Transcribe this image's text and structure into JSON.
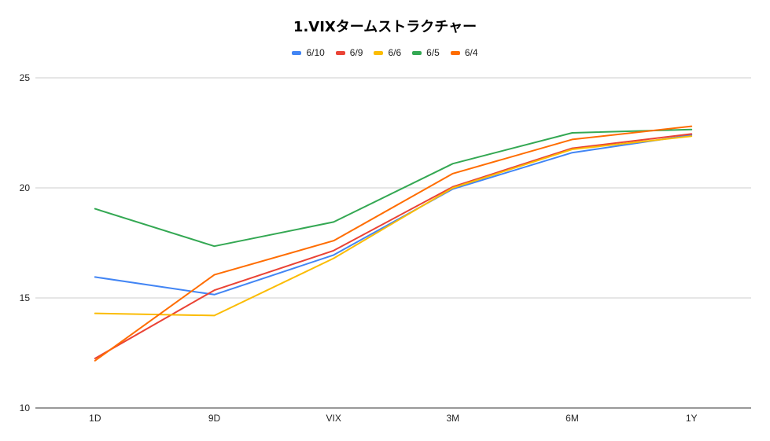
{
  "chart_data": {
    "type": "line",
    "title": "1.VIXタームストラクチャー",
    "xlabel": "",
    "ylabel": "",
    "categories": [
      "1D",
      "9D",
      "VIX",
      "3M",
      "6M",
      "1Y"
    ],
    "ylim": [
      10,
      25
    ],
    "yticks": [
      10,
      15,
      20,
      25
    ],
    "grid": true,
    "legend_position": "top",
    "series": [
      {
        "name": "6/10",
        "color": "#4285f4",
        "values": [
          15.95,
          15.15,
          16.95,
          19.95,
          21.6,
          22.4
        ]
      },
      {
        "name": "6/9",
        "color": "#ea4335",
        "values": [
          12.25,
          15.35,
          17.15,
          20.05,
          21.8,
          22.45
        ]
      },
      {
        "name": "6/6",
        "color": "#fbbc04",
        "values": [
          14.3,
          14.2,
          16.8,
          20.0,
          21.75,
          22.35
        ]
      },
      {
        "name": "6/5",
        "color": "#34a853",
        "values": [
          19.05,
          17.35,
          18.45,
          21.1,
          22.5,
          22.65
        ]
      },
      {
        "name": "6/4",
        "color": "#ff6d01",
        "values": [
          12.15,
          16.05,
          17.6,
          20.65,
          22.2,
          22.8
        ]
      }
    ]
  }
}
